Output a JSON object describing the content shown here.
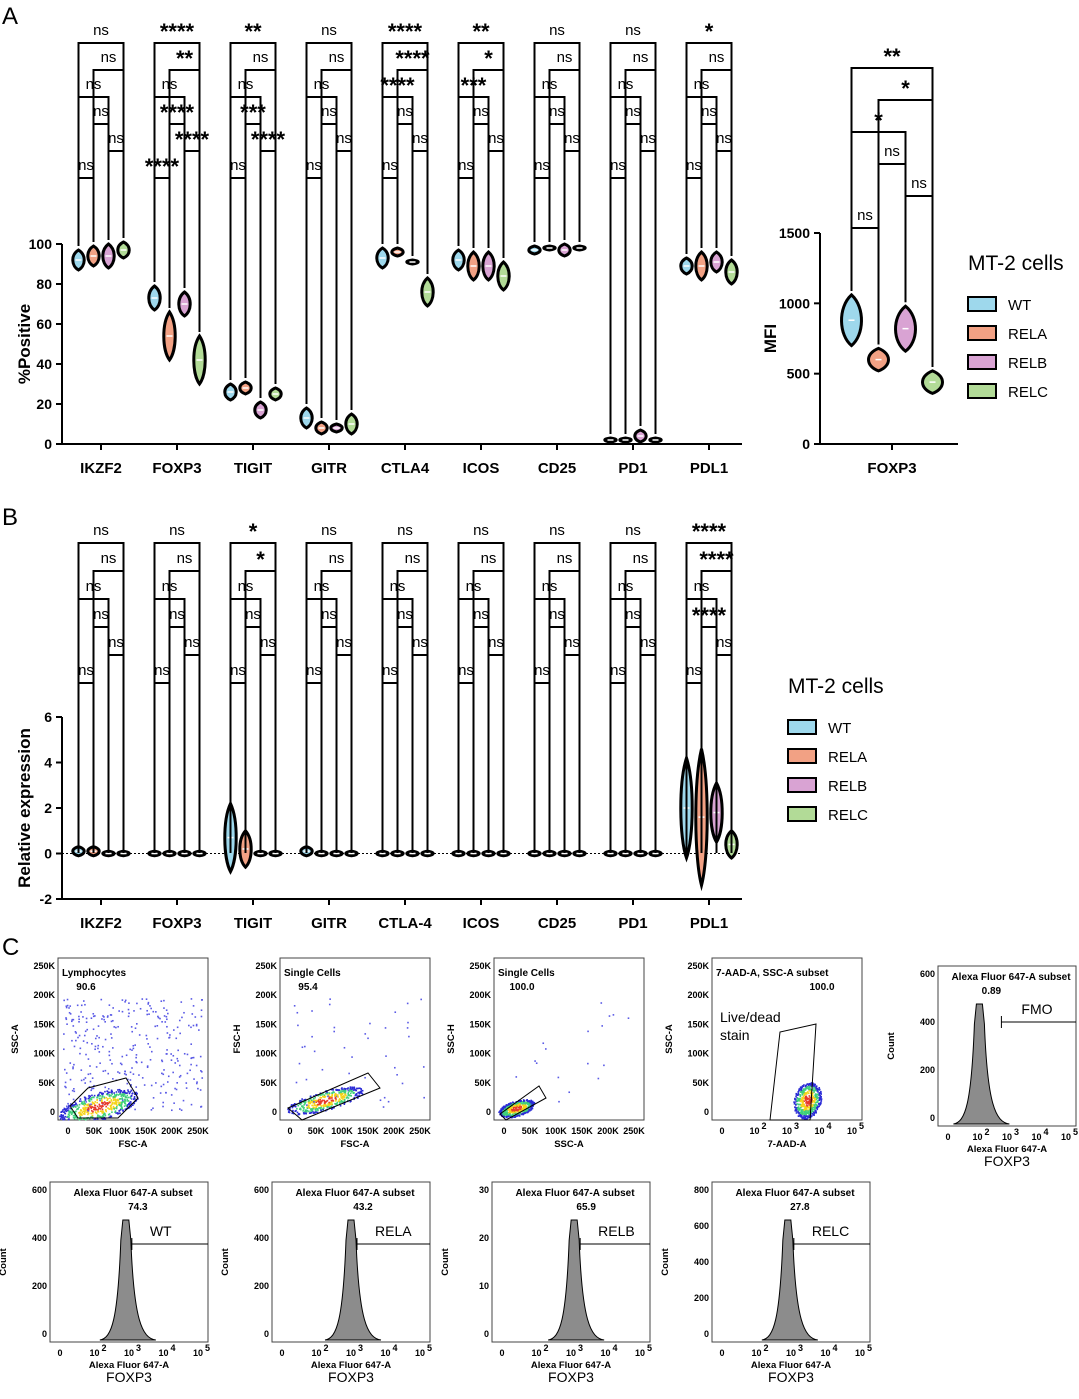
{
  "panels": {
    "a": "A",
    "b": "B",
    "c": "C"
  },
  "colors": {
    "WT": "#9ed8ec",
    "RELA": "#f2a184",
    "RELB": "#d9a3d3",
    "RELC": "#b2db97"
  },
  "chart_data": [
    {
      "id": "A-left",
      "type": "violin",
      "ylabel": "%Positive",
      "ylim": [
        0,
        100
      ],
      "yticks": [
        "0",
        "20",
        "40",
        "60",
        "80",
        "100"
      ],
      "categories": [
        "IKZF2",
        "FOXP3",
        "TIGIT",
        "GITR",
        "CTLA4",
        "ICOS",
        "CD25",
        "PD1",
        "PDL1"
      ],
      "groups": [
        "WT",
        "RELA",
        "RELB",
        "RELC"
      ],
      "values": [
        [
          92,
          94,
          94,
          97
        ],
        [
          73,
          54,
          70,
          42
        ],
        [
          26,
          28,
          17,
          25
        ],
        [
          13,
          8,
          8,
          10
        ],
        [
          93,
          96,
          91,
          76
        ],
        [
          92,
          89,
          89,
          84
        ],
        [
          97,
          98,
          97,
          98
        ],
        [
          2,
          2,
          4,
          2
        ],
        [
          89,
          89,
          91,
          86
        ]
      ],
      "spread": [
        [
          5,
          5,
          6,
          4
        ],
        [
          6,
          12,
          6,
          12
        ],
        [
          4,
          3,
          4,
          3
        ],
        [
          5,
          3,
          2,
          5
        ],
        [
          5,
          2,
          1,
          7
        ],
        [
          5,
          7,
          7,
          7
        ],
        [
          2,
          1,
          3,
          1
        ],
        [
          1,
          1,
          3,
          1
        ],
        [
          4,
          7,
          5,
          6
        ]
      ],
      "significance": [
        [
          "ns",
          "ns",
          "ns",
          "ns",
          "ns",
          "ns"
        ],
        [
          "****",
          "****",
          "****",
          "ns",
          "**",
          "****"
        ],
        [
          "ns",
          "****",
          "***",
          "ns",
          "ns",
          "**"
        ],
        [
          "ns",
          "ns",
          "ns",
          "ns",
          "ns",
          "ns"
        ],
        [
          "ns",
          "ns",
          "ns",
          "****",
          "****",
          "****"
        ],
        [
          "ns",
          "ns",
          "ns",
          "***",
          "*",
          "**"
        ],
        [
          "ns",
          "ns",
          "ns",
          "ns",
          "ns",
          "ns"
        ],
        [
          "ns",
          "ns",
          "ns",
          "ns",
          "ns",
          "ns"
        ],
        [
          "ns",
          "ns",
          "ns",
          "ns",
          "ns",
          "*"
        ]
      ]
    },
    {
      "id": "A-right",
      "type": "violin",
      "ylabel": "MFI",
      "ylim": [
        0,
        1500
      ],
      "yticks": [
        "0",
        "500",
        "1000",
        "1500"
      ],
      "categories": [
        "FOXP3"
      ],
      "groups": [
        "WT",
        "RELA",
        "RELB",
        "RELC"
      ],
      "values": [
        [
          880,
          600,
          820,
          440
        ]
      ],
      "spread": [
        [
          180,
          80,
          160,
          80
        ]
      ],
      "significance": [
        [
          "ns",
          "ns",
          "ns",
          "*",
          "*",
          "**"
        ]
      ]
    },
    {
      "id": "B",
      "type": "violin",
      "ylabel": "Relative expression",
      "ylim": [
        -2,
        6
      ],
      "yticks": [
        "-2",
        "0",
        "2",
        "4",
        "6"
      ],
      "categories": [
        "IKZF2",
        "FOXP3",
        "TIGIT",
        "GITR",
        "CTLA-4",
        "ICOS",
        "CD25",
        "PD1",
        "PDL1"
      ],
      "groups": [
        "WT",
        "RELA",
        "RELB",
        "RELC"
      ],
      "values": [
        [
          0.1,
          0.1,
          0,
          0
        ],
        [
          0,
          0,
          0,
          0
        ],
        [
          0.7,
          0.2,
          0,
          0
        ],
        [
          0.1,
          0,
          0,
          0
        ],
        [
          0,
          0,
          0,
          0
        ],
        [
          0,
          0,
          0,
          0
        ],
        [
          0,
          0,
          0,
          0
        ],
        [
          0,
          0,
          0,
          0
        ],
        [
          2.0,
          1.6,
          1.8,
          0.4
        ]
      ],
      "spread": [
        [
          0.2,
          0.2,
          0.1,
          0.1
        ],
        [
          0.1,
          0.1,
          0.1,
          0.1
        ],
        [
          1.5,
          0.8,
          0.1,
          0.1
        ],
        [
          0.2,
          0.1,
          0.1,
          0.1
        ],
        [
          0.1,
          0.1,
          0.1,
          0.1
        ],
        [
          0.1,
          0.1,
          0.1,
          0.1
        ],
        [
          0.1,
          0.1,
          0.1,
          0.1
        ],
        [
          0.1,
          0.1,
          0.1,
          0.1
        ],
        [
          2.2,
          3.0,
          1.3,
          0.6
        ]
      ],
      "significance": [
        [
          "ns",
          "ns",
          "ns",
          "ns",
          "ns",
          "ns"
        ],
        [
          "ns",
          "ns",
          "ns",
          "ns",
          "ns",
          "ns"
        ],
        [
          "ns",
          "ns",
          "ns",
          "ns",
          "*",
          "*"
        ],
        [
          "ns",
          "ns",
          "ns",
          "ns",
          "ns",
          "ns"
        ],
        [
          "ns",
          "ns",
          "ns",
          "ns",
          "ns",
          "ns"
        ],
        [
          "ns",
          "ns",
          "ns",
          "ns",
          "ns",
          "ns"
        ],
        [
          "ns",
          "ns",
          "ns",
          "ns",
          "ns",
          "ns"
        ],
        [
          "ns",
          "ns",
          "ns",
          "ns",
          "ns",
          "ns"
        ],
        [
          "ns",
          "ns",
          "****",
          "ns",
          "****",
          "****"
        ]
      ]
    }
  ],
  "legend": {
    "title": "MT-2 cells",
    "items": [
      "WT",
      "RELA",
      "RELB",
      "RELC"
    ]
  },
  "flow": {
    "scatter": [
      {
        "gate": "Lymphocytes",
        "pct": "90.6",
        "ylabel": "SSC-A",
        "xlabel": "FSC-A",
        "yticks": [
          "0",
          "50K",
          "100K",
          "150K",
          "200K",
          "250K"
        ],
        "xticks": [
          "0",
          "50K",
          "100K",
          "150K",
          "200K",
          "250K"
        ]
      },
      {
        "gate": "Single Cells",
        "pct": "95.4",
        "ylabel": "FSC-H",
        "xlabel": "FSC-A",
        "yticks": [
          "0",
          "50K",
          "100K",
          "150K",
          "200K",
          "250K"
        ],
        "xticks": [
          "0",
          "50K",
          "100K",
          "150K",
          "200K",
          "250K"
        ]
      },
      {
        "gate": "Single Cells",
        "pct": "100.0",
        "ylabel": "SSC-H",
        "xlabel": "SSC-A",
        "yticks": [
          "0",
          "50K",
          "100K",
          "150K",
          "200K",
          "250K"
        ],
        "xticks": [
          "0",
          "50K",
          "100K",
          "150K",
          "200K",
          "250K"
        ]
      },
      {
        "gate": "7-AAD-A, SSC-A subset",
        "pct": "100.0",
        "note1": "Live/dead",
        "note2": "stain",
        "ylabel": "SSC-A",
        "xlabel": "7-AAD-A",
        "yticks": [
          "0",
          "50K",
          "100K",
          "150K",
          "200K",
          "250K"
        ],
        "xticks": [
          "0",
          "2",
          "3",
          "4",
          "5"
        ]
      }
    ],
    "histograms": [
      {
        "gate": "Alexa Fluor 647-A subset",
        "pct": "0.89",
        "tag": "FMO",
        "ymax": 600,
        "yticks": [
          "0",
          "200",
          "400",
          "600"
        ]
      },
      {
        "gate": "Alexa Fluor 647-A subset",
        "pct": "74.3",
        "tag": "WT",
        "ymax": 600,
        "yticks": [
          "0",
          "200",
          "400",
          "600"
        ]
      },
      {
        "gate": "Alexa Fluor 647-A subset",
        "pct": "43.2",
        "tag": "RELA",
        "ymax": 600,
        "yticks": [
          "0",
          "200",
          "400",
          "600"
        ]
      },
      {
        "gate": "Alexa Fluor 647-A subset",
        "pct": "65.9",
        "tag": "RELB",
        "ymax": 30,
        "yticks": [
          "0",
          "10",
          "20",
          "30"
        ]
      },
      {
        "gate": "Alexa Fluor 647-A subset",
        "pct": "27.8",
        "tag": "RELC",
        "ymax": 800,
        "yticks": [
          "0",
          "200",
          "400",
          "600",
          "800"
        ]
      }
    ],
    "hist_xticks": [
      "0",
      "2",
      "3",
      "4",
      "5"
    ],
    "hist_ylabel": "Count",
    "hist_xlabel": "Alexa Fluor 647-A",
    "hist_xsub": "FOXP3"
  }
}
